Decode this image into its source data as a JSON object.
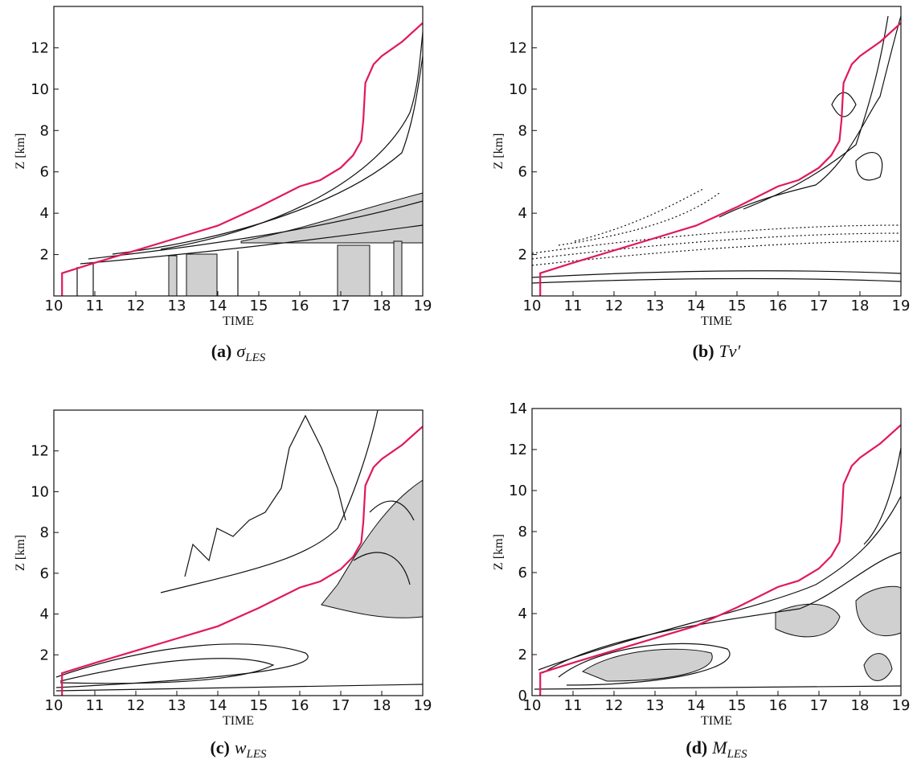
{
  "chart_data": [
    {
      "type": "line",
      "caption": {
        "label": "(a)",
        "symbol": "σ",
        "subscript": "LES"
      },
      "xlabel": "TIME",
      "ylabel": "Z [km]",
      "xlim": [
        10,
        19
      ],
      "ylim": [
        0,
        14
      ],
      "xticks": [
        10,
        11,
        12,
        13,
        14,
        15,
        16,
        17,
        18,
        19
      ],
      "yticks": [
        2,
        4,
        6,
        8,
        10,
        12
      ],
      "series": [
        {
          "color": "#e0195a",
          "x": [
            10.2,
            10.2,
            11,
            12,
            13,
            14,
            15,
            16,
            16.5,
            17,
            17.3,
            17.5,
            17.55,
            17.6,
            17.8,
            18,
            18.5,
            19
          ],
          "values": [
            0,
            1.1,
            1.6,
            2.2,
            2.8,
            3.4,
            4.3,
            5.3,
            5.6,
            6.2,
            6.8,
            7.5,
            8.5,
            10.3,
            11.2,
            11.6,
            12.3,
            13.2
          ]
        }
      ]
    },
    {
      "type": "line",
      "caption": {
        "label": "(b)",
        "symbol": "Tv′"
      },
      "xlabel": "TIME",
      "ylabel": "Z [km]",
      "xlim": [
        10,
        19
      ],
      "ylim": [
        0,
        14
      ],
      "xticks": [
        10,
        11,
        12,
        13,
        14,
        15,
        16,
        17,
        18,
        19
      ],
      "yticks": [
        2,
        4,
        6,
        8,
        10,
        12
      ],
      "series": [
        {
          "color": "#e0195a",
          "x": [
            10.2,
            10.2,
            11,
            12,
            13,
            14,
            15,
            16,
            16.5,
            17,
            17.3,
            17.5,
            17.55,
            17.6,
            17.8,
            18,
            18.5,
            19
          ],
          "values": [
            0,
            1.1,
            1.6,
            2.2,
            2.8,
            3.4,
            4.3,
            5.3,
            5.6,
            6.2,
            6.8,
            7.5,
            8.5,
            10.3,
            11.2,
            11.6,
            12.3,
            13.2
          ]
        }
      ]
    },
    {
      "type": "line",
      "caption": {
        "label": "(c)",
        "symbol": "w",
        "subscript": "LES"
      },
      "xlabel": "TIME",
      "ylabel": "Z [km]",
      "xlim": [
        10,
        19
      ],
      "ylim": [
        0,
        14
      ],
      "xticks": [
        10,
        11,
        12,
        13,
        14,
        15,
        16,
        17,
        18,
        19
      ],
      "yticks": [
        2,
        4,
        6,
        8,
        10,
        12
      ],
      "series": [
        {
          "color": "#e0195a",
          "x": [
            10.2,
            10.2,
            11,
            12,
            13,
            14,
            15,
            16,
            16.5,
            17,
            17.3,
            17.5,
            17.55,
            17.6,
            17.8,
            18,
            18.5,
            19
          ],
          "values": [
            0,
            1.1,
            1.6,
            2.2,
            2.8,
            3.4,
            4.3,
            5.3,
            5.6,
            6.2,
            6.8,
            7.5,
            8.5,
            10.3,
            11.2,
            11.6,
            12.3,
            13.2
          ]
        }
      ]
    },
    {
      "type": "line",
      "caption": {
        "label": "(d)",
        "symbol": "M",
        "subscript": "LES"
      },
      "xlabel": "TIME",
      "ylabel": "Z [km]",
      "xlim": [
        10,
        19
      ],
      "ylim": [
        0,
        14
      ],
      "xticks": [
        10,
        11,
        12,
        13,
        14,
        15,
        16,
        17,
        18,
        19
      ],
      "yticks": [
        0,
        2,
        4,
        6,
        8,
        10,
        12,
        14
      ],
      "series": [
        {
          "color": "#e0195a",
          "x": [
            10.2,
            10.2,
            11,
            12,
            13,
            14,
            15,
            16,
            16.5,
            17,
            17.3,
            17.5,
            17.55,
            17.6,
            17.8,
            18,
            18.5,
            19
          ],
          "values": [
            0,
            1.1,
            1.6,
            2.2,
            2.8,
            3.4,
            4.3,
            5.3,
            5.6,
            6.2,
            6.8,
            7.5,
            8.5,
            10.3,
            11.2,
            11.6,
            12.3,
            13.2
          ]
        }
      ]
    }
  ]
}
